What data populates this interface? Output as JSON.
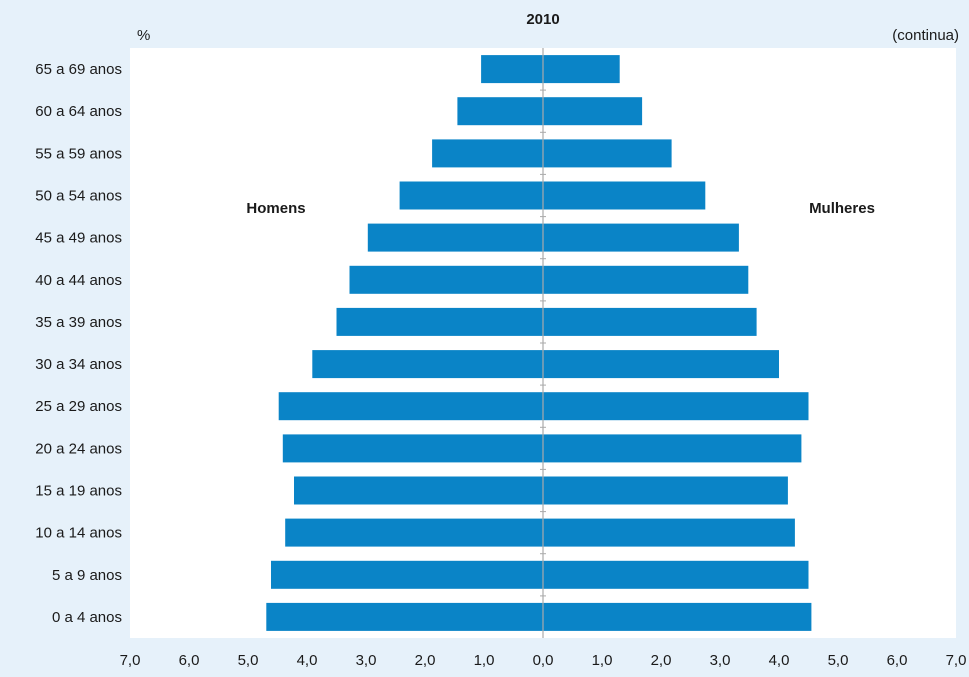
{
  "chart_data": {
    "type": "bar",
    "orientation": "horizontal",
    "title": "2010",
    "unit_label": "%",
    "note": "(continua)",
    "categories": [
      "65 a 69 anos",
      "60 a 64 anos",
      "55 a 59 anos",
      "50 a 54 anos",
      "45 a 49 anos",
      "40 a 44 anos",
      "35 a 39 anos",
      "30 a 34 anos",
      "25 a 29 anos",
      "20 a 24 anos",
      "15 a 19 anos",
      "10 a 14 anos",
      "5 a 9 anos",
      "0 a 4 anos"
    ],
    "series": [
      {
        "name": "Homens",
        "side": "left",
        "values": [
          1.05,
          1.45,
          1.88,
          2.43,
          2.97,
          3.28,
          3.5,
          3.91,
          4.48,
          4.41,
          4.22,
          4.37,
          4.61,
          4.69
        ]
      },
      {
        "name": "Mulheres",
        "side": "right",
        "values": [
          1.3,
          1.68,
          2.18,
          2.75,
          3.32,
          3.48,
          3.62,
          4.0,
          4.5,
          4.38,
          4.15,
          4.27,
          4.5,
          4.55
        ]
      }
    ],
    "xlim": [
      -7,
      7
    ],
    "x_ticks": [
      "7,0",
      "6,0",
      "5,0",
      "4,0",
      "3,0",
      "2,0",
      "1,0",
      "0,0",
      "1,0",
      "2,0",
      "3,0",
      "4,0",
      "5,0",
      "6,0",
      "7,0"
    ],
    "grid": false,
    "colors": {
      "bar": "#0a84c7",
      "plot_background": "#ffffff",
      "page_background": "#e6f1fa",
      "center_line": "#aaaaaa"
    }
  }
}
